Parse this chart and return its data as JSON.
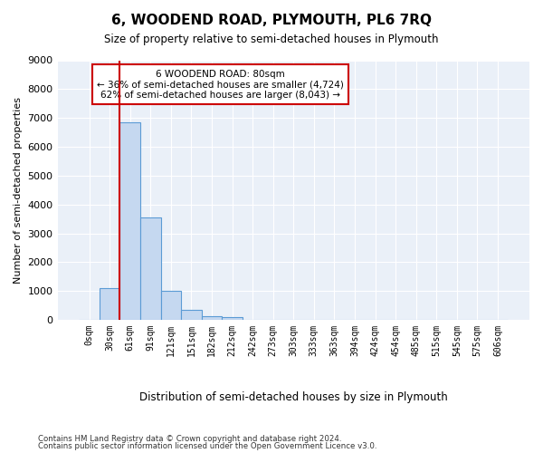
{
  "title": "6, WOODEND ROAD, PLYMOUTH, PL6 7RQ",
  "subtitle": "Size of property relative to semi-detached houses in Plymouth",
  "xlabel": "Distribution of semi-detached houses by size in Plymouth",
  "ylabel": "Number of semi-detached properties",
  "bar_color": "#c5d8f0",
  "bar_edge_color": "#5b9bd5",
  "background_color": "#eaf0f8",
  "grid_color": "#ffffff",
  "annotation_box_color": "#cc0000",
  "vline_color": "#cc0000",
  "bin_labels": [
    "0sqm",
    "30sqm",
    "61sqm",
    "91sqm",
    "121sqm",
    "151sqm",
    "182sqm",
    "212sqm",
    "242sqm",
    "273sqm",
    "303sqm",
    "333sqm",
    "363sqm",
    "394sqm",
    "424sqm",
    "454sqm",
    "485sqm",
    "515sqm",
    "545sqm",
    "575sqm",
    "606sqm"
  ],
  "bar_values": [
    0,
    1100,
    6850,
    3560,
    1000,
    330,
    140,
    100,
    0,
    0,
    0,
    0,
    0,
    0,
    0,
    0,
    0,
    0,
    0,
    0,
    0
  ],
  "ylim": [
    0,
    9000
  ],
  "yticks": [
    0,
    1000,
    2000,
    3000,
    4000,
    5000,
    6000,
    7000,
    8000,
    9000
  ],
  "property_label": "6 WOODEND ROAD: 80sqm",
  "pct_smaller": 36,
  "pct_larger": 62,
  "count_smaller": 4724,
  "count_larger": 8043,
  "footer_line1": "Contains HM Land Registry data © Crown copyright and database right 2024.",
  "footer_line2": "Contains public sector information licensed under the Open Government Licence v3.0."
}
